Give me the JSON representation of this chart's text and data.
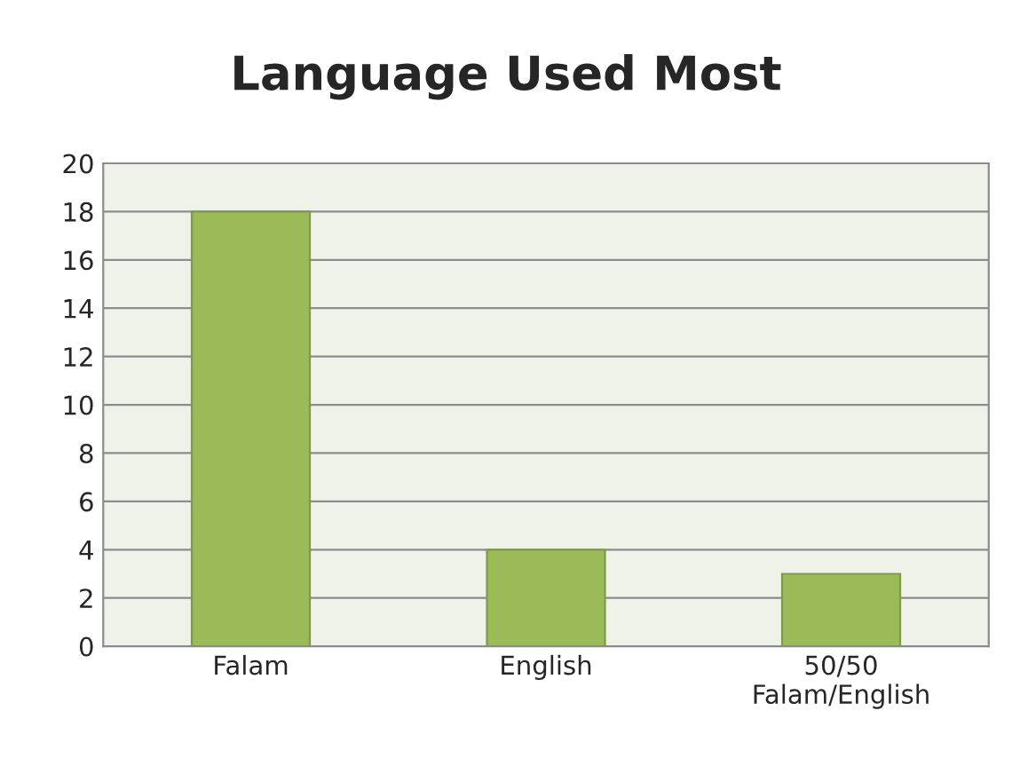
{
  "chart_data": {
    "type": "bar",
    "title": "Language Used Most",
    "categories": [
      "Falam",
      "English",
      "50/50\nFalam/English"
    ],
    "values": [
      18,
      4,
      3
    ],
    "color": "#9bbb59",
    "ylim": [
      0,
      20
    ],
    "yticks": [
      0,
      2,
      4,
      6,
      8,
      10,
      12,
      14,
      16,
      18,
      20
    ],
    "grid": "y",
    "legend": false
  }
}
